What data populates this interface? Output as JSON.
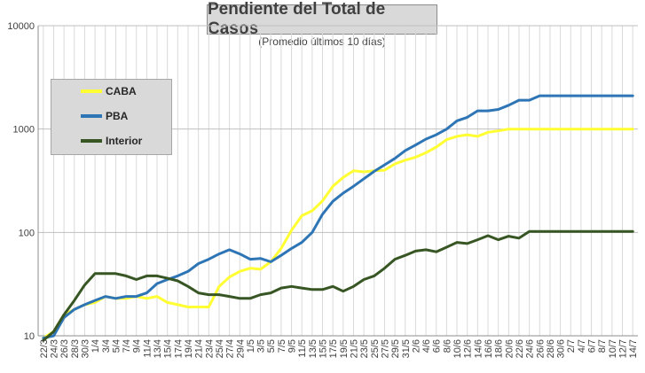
{
  "chart_data": {
    "type": "line",
    "title": "Pendiente del Total de Casos",
    "subtitle": "(Promedio últimos 10 días)",
    "y_scale": "log",
    "ylim": [
      10,
      10000
    ],
    "y_ticks": [
      "10",
      "100",
      "1000",
      "10000"
    ],
    "grid": "vertical and horizontal major lines",
    "legend_position": "top-left",
    "categories": [
      "22/3",
      "24/3",
      "26/3",
      "28/3",
      "30/3",
      "1/4",
      "3/4",
      "5/4",
      "7/4",
      "9/4",
      "11/4",
      "13/4",
      "15/4",
      "17/4",
      "19/4",
      "21/4",
      "23/4",
      "25/4",
      "27/4",
      "29/4",
      "1/5",
      "3/5",
      "5/5",
      "7/5",
      "9/5",
      "11/5",
      "13/5",
      "15/5",
      "17/5",
      "19/5",
      "21/5",
      "23/5",
      "25/5",
      "27/5",
      "29/5",
      "31/5",
      "2/6",
      "4/6",
      "6/6",
      "8/6",
      "10/6",
      "12/6",
      "14/6",
      "16/6",
      "18/6",
      "20/6",
      "22/6",
      "24/6",
      "26/6",
      "28/6",
      "30/6",
      "2/7",
      "4/7",
      "6/7",
      "8/7",
      "10/7",
      "12/7",
      "14/7"
    ],
    "series": [
      {
        "name": "CABA",
        "color": "#ffff33",
        "values": [
          9.5,
          11,
          16,
          18,
          20,
          21,
          24,
          23,
          23,
          24,
          23,
          24,
          21,
          20,
          19,
          19,
          19,
          30,
          37,
          42,
          45,
          44,
          52,
          70,
          105,
          145,
          162,
          202,
          280,
          340,
          395,
          385,
          395,
          400,
          460,
          500,
          535,
          590,
          670,
          790,
          850,
          880,
          850,
          930,
          960,
          1000,
          1000,
          1000,
          1000,
          1000,
          1000,
          1000,
          1000,
          1000,
          1000,
          1000,
          1000,
          1000
        ]
      },
      {
        "name": "PBA",
        "color": "#2e75b6",
        "values": [
          9.5,
          10,
          15,
          18,
          20,
          22,
          24,
          23,
          24,
          24,
          26,
          32,
          35,
          38,
          42,
          50,
          55,
          62,
          68,
          62,
          55,
          56,
          52,
          60,
          70,
          80,
          100,
          150,
          200,
          240,
          280,
          330,
          390,
          450,
          520,
          620,
          700,
          800,
          880,
          1000,
          1200,
          1300,
          1500,
          1500,
          1550,
          1700,
          1900,
          1900,
          2100,
          2100,
          2100,
          2100,
          2100,
          2100,
          2100,
          2100,
          2100,
          2100
        ]
      },
      {
        "name": "Interior",
        "color": "#375623",
        "values": [
          9,
          11,
          16,
          22,
          31,
          40,
          40,
          40,
          38,
          35,
          38,
          38,
          36,
          34,
          30,
          26,
          25,
          25,
          24,
          23,
          23,
          25,
          26,
          29,
          30,
          29,
          28,
          28,
          30,
          27,
          30,
          35,
          38,
          45,
          55,
          60,
          66,
          68,
          65,
          72,
          80,
          78,
          85,
          93,
          85,
          92,
          88,
          102,
          102,
          102,
          102,
          102,
          102,
          102,
          102,
          102,
          102,
          102
        ]
      }
    ]
  }
}
